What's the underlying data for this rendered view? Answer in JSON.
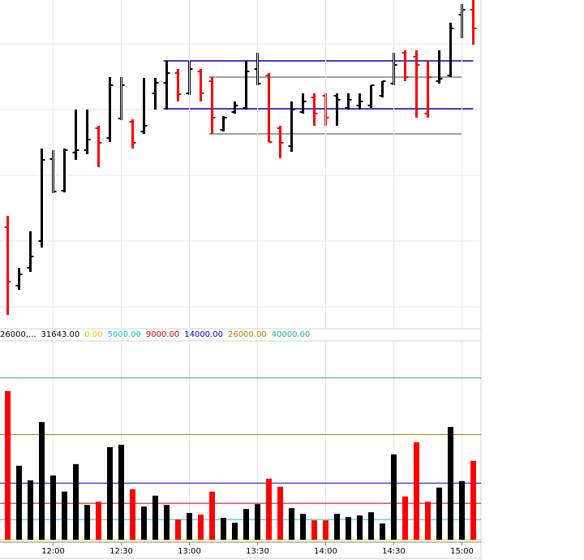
{
  "chart_data": [
    {
      "type": "ohlc",
      "ylim": [
        0,
        405
      ],
      "open": [
        125,
        53,
        75,
        108,
        209,
        170,
        217,
        220,
        247,
        235,
        259,
        255,
        243,
        290,
        303,
        315,
        290,
        317,
        305,
        245,
        267,
        272,
        320,
        312,
        247,
        225,
        267,
        285,
        287,
        287,
        272,
        275,
        275,
        287,
        302,
        340,
        335,
        265,
        305,
        312,
        387,
        393
      ],
      "high": [
        139,
        75,
        120,
        222,
        220,
        222,
        270,
        270,
        250,
        310,
        310,
        258,
        309,
        309,
        330,
        320,
        330,
        320,
        310,
        262,
        280,
        330,
        340,
        315,
        250,
        280,
        290,
        290,
        290,
        290,
        290,
        290,
        300,
        305,
        340,
        343,
        343,
        330,
        343,
        377,
        400,
        405
      ],
      "low": [
        17,
        48,
        70,
        100,
        167,
        168,
        208,
        215,
        199,
        230,
        257,
        222,
        240,
        270,
        270,
        280,
        288,
        280,
        240,
        243,
        265,
        270,
        300,
        230,
        210,
        218,
        265,
        250,
        250,
        250,
        270,
        270,
        272,
        285,
        300,
        305,
        260,
        260,
        302,
        310,
        358,
        350
      ],
      "close": [
        58,
        67,
        89,
        208,
        169,
        220,
        220,
        233,
        229,
        300,
        300,
        229,
        250,
        303,
        315,
        289,
        320,
        290,
        260,
        260,
        275,
        317,
        302,
        230,
        229,
        270,
        280,
        265,
        260,
        282,
        282,
        280,
        300,
        305,
        325,
        310,
        325,
        310,
        308,
        370,
        393,
        370
      ],
      "colors": [
        "#ff0000",
        "#000000",
        "#000000",
        "#000000",
        "#000000",
        "#000000",
        "#000000",
        "#000000",
        "#ff0000",
        "#000000",
        "#000000",
        "#ff0000",
        "#000000",
        "#000000",
        "#000000",
        "#ff0000",
        "#000000",
        "#ff0000",
        "#ff0000",
        "#000000",
        "#000000",
        "#000000",
        "#000000",
        "#ff0000",
        "#ff0000",
        "#000000",
        "#000000",
        "#ff0000",
        "#ff0000",
        "#000000",
        "#000000",
        "#000000",
        "#000000",
        "#000000",
        "#000000",
        "#ff0000",
        "#ff0000",
        "#ff0000",
        "#000000",
        "#000000",
        "#000000",
        "#ff0000"
      ],
      "levels": [
        {
          "value": 330,
          "color": "#0000cc",
          "from": 14,
          "to": 41
        },
        {
          "value": 271,
          "color": "#0000cc",
          "from": 14,
          "to": 41
        },
        {
          "value": 310,
          "color": "#808080",
          "from": 18,
          "to": 40
        },
        {
          "value": 240,
          "color": "#808080",
          "from": 18,
          "to": 40
        }
      ]
    },
    {
      "type": "bar",
      "legend_texts": [
        "26000,...",
        "31643.00"
      ],
      "categories": [
        null,
        null,
        null,
        null,
        "12:00",
        null,
        null,
        null,
        null,
        null,
        "12:30",
        null,
        null,
        null,
        null,
        null,
        "13:00",
        null,
        null,
        null,
        null,
        null,
        "13:30",
        null,
        null,
        null,
        null,
        null,
        "14:00",
        null,
        null,
        null,
        null,
        null,
        "14:30",
        null,
        null,
        null,
        null,
        null,
        "15:00",
        null
      ],
      "values": [
        36800,
        18300,
        14700,
        29100,
        15900,
        11900,
        18700,
        8600,
        9400,
        22900,
        23500,
        12500,
        8200,
        10900,
        8600,
        5000,
        6600,
        6200,
        11900,
        5400,
        4200,
        7600,
        8800,
        15100,
        13100,
        7800,
        6400,
        4800,
        4800,
        6400,
        5600,
        6000,
        6800,
        4000,
        21100,
        10700,
        24100,
        9400,
        12900,
        27900,
        14500,
        19500
      ],
      "ylim": [
        0,
        50000
      ],
      "levels": [
        {
          "value": 0,
          "label": "0.00",
          "color": "#e8c800"
        },
        {
          "value": 5000,
          "label": "5000.00",
          "color": "#00c8c8"
        },
        {
          "value": 9000,
          "label": "9000.00",
          "color": "#cc0000"
        },
        {
          "value": 14000,
          "label": "14000.00",
          "color": "#0000cc"
        },
        {
          "value": 26000,
          "label": "26000.00",
          "color": "#b08000"
        },
        {
          "value": 40000,
          "label": "40000.00",
          "color": "#20a8a0"
        }
      ]
    }
  ]
}
